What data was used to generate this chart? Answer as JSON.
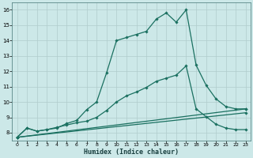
{
  "xlabel": "Humidex (Indice chaleur)",
  "xlim": [
    -0.5,
    23.5
  ],
  "ylim": [
    7.5,
    16.5
  ],
  "xticks": [
    0,
    1,
    2,
    3,
    4,
    5,
    6,
    7,
    8,
    9,
    10,
    11,
    12,
    13,
    14,
    15,
    16,
    17,
    18,
    19,
    20,
    21,
    22,
    23
  ],
  "yticks": [
    8,
    9,
    10,
    11,
    12,
    13,
    14,
    15,
    16
  ],
  "bg_color": "#cce8e8",
  "grid_color": "#b0cccc",
  "line_color": "#1a7060",
  "lines": [
    {
      "x": [
        0,
        1,
        2,
        3,
        4,
        5,
        6,
        7,
        8,
        9,
        10,
        11,
        12,
        13,
        14,
        15,
        16,
        17,
        18,
        19,
        20,
        21,
        22,
        23
      ],
      "y": [
        7.7,
        8.3,
        8.1,
        8.2,
        8.3,
        8.6,
        8.8,
        9.5,
        10.0,
        11.9,
        14.0,
        14.2,
        14.4,
        14.6,
        15.4,
        15.8,
        15.2,
        16.0,
        12.4,
        11.1,
        10.2,
        9.7,
        9.55,
        9.55
      ]
    },
    {
      "x": [
        0,
        1,
        2,
        3,
        4,
        5,
        6,
        7,
        8,
        9,
        10,
        11,
        12,
        13,
        14,
        15,
        16,
        17,
        18,
        19,
        20,
        21,
        22,
        23
      ],
      "y": [
        7.7,
        8.3,
        8.1,
        8.2,
        8.35,
        8.5,
        8.65,
        8.75,
        9.0,
        9.45,
        10.0,
        10.4,
        10.65,
        10.95,
        11.35,
        11.55,
        11.75,
        12.35,
        9.55,
        9.05,
        8.55,
        8.3,
        8.2,
        8.2
      ]
    },
    {
      "x": [
        0,
        23
      ],
      "y": [
        7.7,
        9.55
      ]
    },
    {
      "x": [
        0,
        23
      ],
      "y": [
        7.7,
        9.3
      ]
    }
  ]
}
